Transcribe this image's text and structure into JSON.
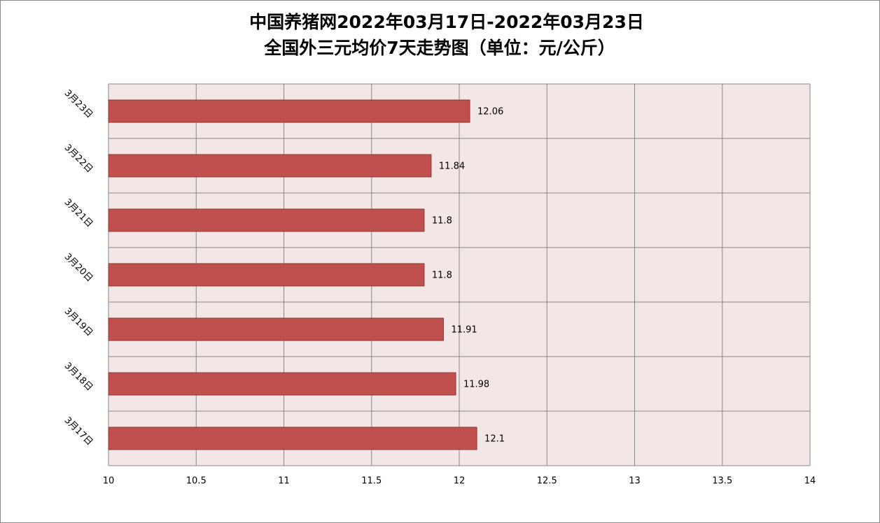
{
  "chart_data": {
    "type": "bar",
    "orientation": "horizontal",
    "title": [
      "中国养猪网2022年03月17日-2022年03月23日",
      "全国外三元均价7天走势图（单位：元/公斤）"
    ],
    "categories": [
      "3月17日",
      "3月18日",
      "3月19日",
      "3月20日",
      "3月21日",
      "3月22日",
      "3月23日"
    ],
    "values": [
      12.1,
      11.98,
      11.91,
      11.8,
      11.8,
      11.84,
      12.06
    ],
    "color": "#c0504d",
    "xlim": [
      10,
      14
    ],
    "xticks": [
      10,
      10.5,
      11,
      11.5,
      12,
      12.5,
      13,
      13.5,
      14
    ],
    "grid": true
  }
}
